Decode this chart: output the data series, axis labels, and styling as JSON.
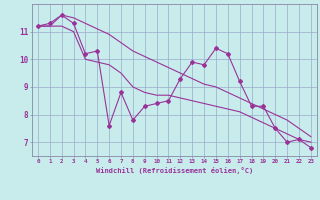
{
  "xlabel": "Windchill (Refroidissement éolien,°C)",
  "background_color": "#c8ecec",
  "line_color": "#993399",
  "grid_color": "#99aacc",
  "x_hours": [
    0,
    1,
    2,
    3,
    4,
    5,
    6,
    7,
    8,
    9,
    10,
    11,
    12,
    13,
    14,
    15,
    16,
    17,
    18,
    19,
    20,
    21,
    22,
    23
  ],
  "main_data": [
    11.2,
    11.3,
    11.6,
    11.3,
    10.2,
    10.3,
    7.6,
    8.8,
    7.8,
    8.3,
    8.4,
    8.5,
    9.3,
    9.9,
    9.8,
    10.4,
    10.2,
    9.2,
    8.3,
    8.3,
    7.5,
    7.0,
    7.1,
    6.8
  ],
  "smooth_low": [
    11.2,
    11.2,
    11.2,
    11.0,
    10.0,
    9.9,
    9.8,
    9.5,
    9.0,
    8.8,
    8.7,
    8.7,
    8.6,
    8.5,
    8.4,
    8.3,
    8.2,
    8.1,
    7.9,
    7.7,
    7.5,
    7.3,
    7.1,
    7.0
  ],
  "smooth_high": [
    11.2,
    11.2,
    11.6,
    11.5,
    11.3,
    11.1,
    10.9,
    10.6,
    10.3,
    10.1,
    9.9,
    9.7,
    9.5,
    9.3,
    9.1,
    9.0,
    8.8,
    8.6,
    8.4,
    8.2,
    8.0,
    7.8,
    7.5,
    7.2
  ],
  "ylim": [
    6.5,
    12.0
  ],
  "yticks": [
    7,
    8,
    9,
    10,
    11
  ],
  "xlim": [
    -0.5,
    23.5
  ]
}
